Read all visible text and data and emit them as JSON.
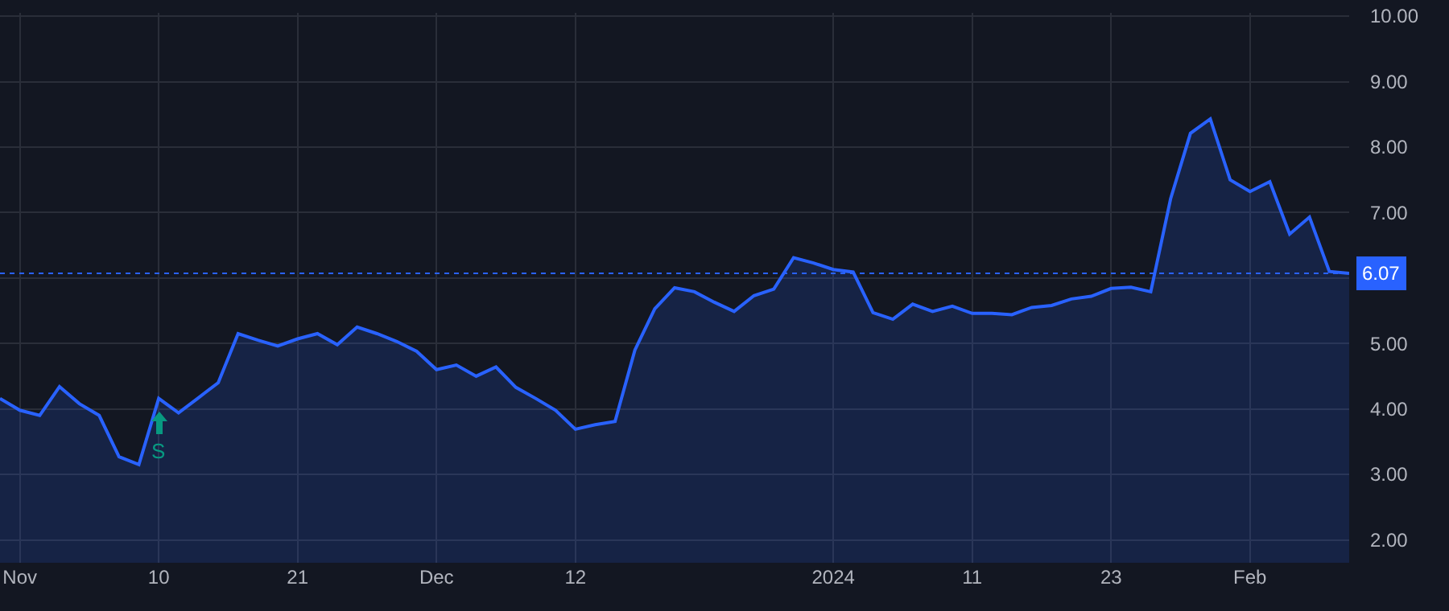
{
  "chart_data": {
    "type": "area",
    "categories": [
      null,
      "Nov",
      null,
      null,
      null,
      null,
      null,
      null,
      "10",
      null,
      null,
      null,
      null,
      null,
      null,
      "21",
      null,
      null,
      null,
      null,
      null,
      null,
      "Dec",
      null,
      null,
      null,
      null,
      null,
      null,
      "12",
      null,
      null,
      null,
      null,
      null,
      null,
      null,
      null,
      null,
      null,
      null,
      null,
      "2024",
      null,
      null,
      null,
      null,
      null,
      null,
      "11",
      null,
      null,
      null,
      null,
      null,
      null,
      "23",
      null,
      null,
      null,
      null,
      null,
      null,
      "Feb",
      null,
      null,
      null,
      null,
      null
    ],
    "series": [
      {
        "color": "#2962ff",
        "values": [
          4.16,
          3.98,
          3.9,
          4.34,
          4.08,
          3.9,
          3.27,
          3.15,
          4.16,
          3.94,
          4.17,
          4.4,
          5.15,
          5.05,
          4.96,
          5.07,
          5.15,
          4.98,
          5.25,
          5.15,
          5.03,
          4.88,
          4.6,
          4.67,
          4.5,
          4.64,
          4.33,
          4.16,
          3.98,
          3.69,
          3.76,
          3.81,
          4.9,
          5.53,
          5.85,
          5.79,
          5.63,
          5.49,
          5.73,
          5.83,
          6.31,
          6.23,
          6.13,
          6.09,
          5.47,
          5.37,
          5.6,
          5.49,
          5.57,
          5.46,
          5.46,
          5.44,
          5.55,
          5.58,
          5.68,
          5.72,
          5.84,
          5.86,
          5.79,
          7.21,
          8.21,
          8.43,
          7.5,
          7.32,
          7.47,
          6.67,
          6.93,
          6.1,
          6.07
        ]
      }
    ],
    "ylim": [
      1.65,
      10.05
    ],
    "yticks": [
      {
        "value": 2,
        "label": "2.00"
      },
      {
        "value": 3,
        "label": "3.00"
      },
      {
        "value": 4,
        "label": "4.00"
      },
      {
        "value": 5,
        "label": "5.00"
      },
      {
        "value": 6,
        "label": null
      },
      {
        "value": 7,
        "label": "7.00"
      },
      {
        "value": 8,
        "label": "8.00"
      },
      {
        "value": 9,
        "label": "9.00"
      },
      {
        "value": 10,
        "label": "10.00"
      }
    ],
    "grid": true,
    "marker": "none",
    "line_style": "solid",
    "ref_lines": [
      {
        "axis": "y",
        "value": 6.07,
        "label": "6.07",
        "color": "#2962ff",
        "line_style": "dotted"
      }
    ],
    "annotations": [
      {
        "text": "S",
        "x": "10",
        "y": 3.98
      }
    ]
  }
}
